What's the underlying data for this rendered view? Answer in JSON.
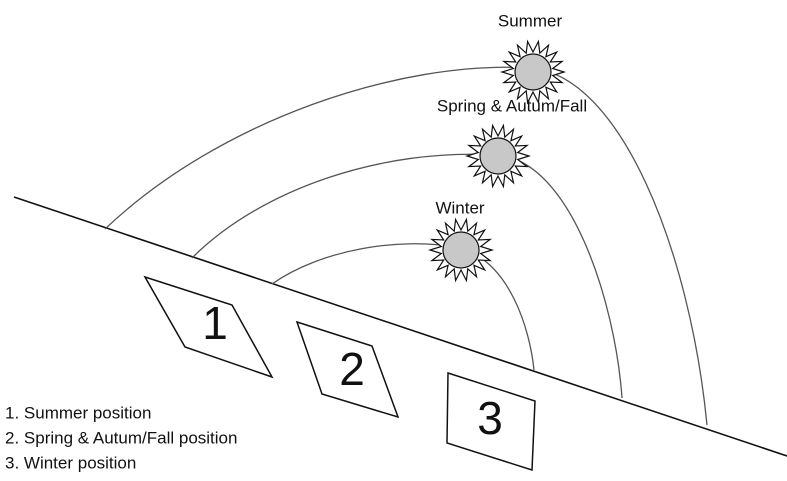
{
  "seasons": [
    {
      "label": "Summer"
    },
    {
      "label": "Spring & Autum/Fall"
    },
    {
      "label": "Winter"
    }
  ],
  "positions": [
    {
      "number": "1"
    },
    {
      "number": "2"
    },
    {
      "number": "3"
    }
  ],
  "legend": [
    "1. Summer position",
    "2. Spring & Autum/Fall position",
    "3. Winter position"
  ]
}
